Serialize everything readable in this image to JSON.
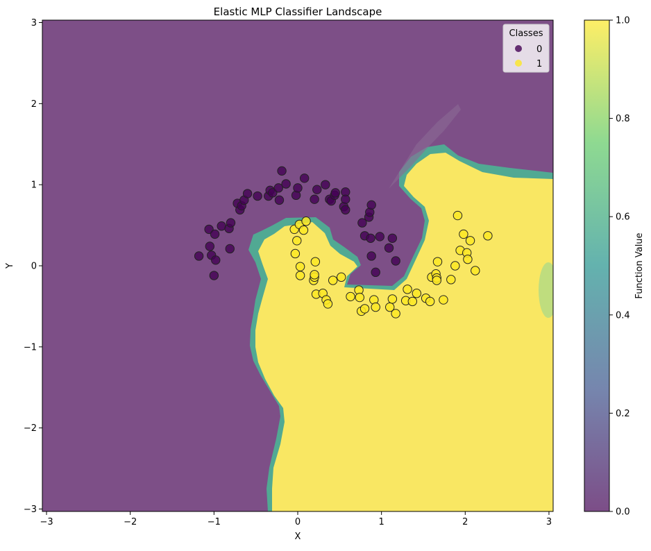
{
  "chart_data": {
    "type": "scatter",
    "title": "Elastic MLP Classifier Landscape",
    "xlabel": "X",
    "ylabel": "Y",
    "xlim": [
      -3.05,
      3.05
    ],
    "ylim": [
      -3.03,
      3.03
    ],
    "xticks": [
      -3,
      -2,
      -1,
      0,
      1,
      2,
      3
    ],
    "xtick_labels": [
      "−3",
      "−2",
      "−1",
      "0",
      "1",
      "2",
      "3"
    ],
    "yticks": [
      -3,
      -2,
      -1,
      0,
      1,
      2,
      3
    ],
    "ytick_labels": [
      "−3",
      "−2",
      "−1",
      "0",
      "1",
      "2",
      "3"
    ],
    "background": "decision function heatmap (viridis, alpha 0.7) — class 1 region yellow, class 0 region purple",
    "colorbar": {
      "label": "Function Value",
      "range": [
        0.0,
        1.0
      ],
      "ticks": [
        0.0,
        0.2,
        0.4,
        0.6,
        0.8,
        1.0
      ],
      "tick_labels": [
        "0.0",
        "0.2",
        "0.4",
        "0.6",
        "0.8",
        "1.0"
      ],
      "colors": [
        "#440154",
        "#3b528b",
        "#21918c",
        "#5ec962",
        "#fde725"
      ]
    },
    "legend": {
      "title": "Classes",
      "placement": "top-right",
      "entries": [
        {
          "label": "0",
          "color": "#440154"
        },
        {
          "label": "1",
          "color": "#fde725"
        }
      ]
    },
    "series": [
      {
        "name": "0",
        "color": "#440154",
        "points": [
          [
            -1.18,
            0.12
          ],
          [
            -1.05,
            0.24
          ],
          [
            -1.03,
            0.13
          ],
          [
            -0.98,
            0.07
          ],
          [
            -1.0,
            -0.12
          ],
          [
            -1.06,
            0.45
          ],
          [
            -0.99,
            0.39
          ],
          [
            -0.91,
            0.49
          ],
          [
            -0.82,
            0.46
          ],
          [
            -0.8,
            0.53
          ],
          [
            -0.81,
            0.21
          ],
          [
            -0.72,
            0.77
          ],
          [
            -0.69,
            0.69
          ],
          [
            -0.67,
            0.74
          ],
          [
            -0.64,
            0.81
          ],
          [
            -0.6,
            0.89
          ],
          [
            -0.48,
            0.86
          ],
          [
            -0.35,
            0.86
          ],
          [
            -0.33,
            0.93
          ],
          [
            -0.3,
            0.9
          ],
          [
            -0.23,
            0.96
          ],
          [
            -0.22,
            0.81
          ],
          [
            -0.19,
            1.17
          ],
          [
            -0.14,
            1.01
          ],
          [
            -0.02,
            0.87
          ],
          [
            0.0,
            0.96
          ],
          [
            0.08,
            1.08
          ],
          [
            0.2,
            0.82
          ],
          [
            0.23,
            0.94
          ],
          [
            0.33,
            1.0
          ],
          [
            0.38,
            0.82
          ],
          [
            0.4,
            0.8
          ],
          [
            0.44,
            0.87
          ],
          [
            0.45,
            0.9
          ],
          [
            0.55,
            0.73
          ],
          [
            0.57,
            0.91
          ],
          [
            0.57,
            0.82
          ],
          [
            0.57,
            0.69
          ],
          [
            0.77,
            0.53
          ],
          [
            0.8,
            0.37
          ],
          [
            0.85,
            0.6
          ],
          [
            0.86,
            0.66
          ],
          [
            0.88,
            0.75
          ],
          [
            0.87,
            0.34
          ],
          [
            0.88,
            0.12
          ],
          [
            0.93,
            -0.08
          ],
          [
            0.98,
            0.36
          ],
          [
            1.09,
            0.22
          ],
          [
            1.13,
            0.34
          ],
          [
            1.17,
            0.06
          ]
        ]
      },
      {
        "name": "1",
        "color": "#fde725",
        "points": [
          [
            -0.04,
            0.45
          ],
          [
            -0.03,
            0.15
          ],
          [
            -0.01,
            0.31
          ],
          [
            0.02,
            0.51
          ],
          [
            0.03,
            -0.01
          ],
          [
            0.03,
            -0.12
          ],
          [
            0.07,
            0.44
          ],
          [
            0.1,
            0.55
          ],
          [
            0.19,
            -0.18
          ],
          [
            0.2,
            -0.14
          ],
          [
            0.2,
            -0.11
          ],
          [
            0.21,
            0.05
          ],
          [
            0.22,
            -0.35
          ],
          [
            0.3,
            -0.34
          ],
          [
            0.34,
            -0.42
          ],
          [
            0.36,
            -0.47
          ],
          [
            0.42,
            -0.18
          ],
          [
            0.52,
            -0.14
          ],
          [
            0.63,
            -0.38
          ],
          [
            0.73,
            -0.3
          ],
          [
            0.74,
            -0.39
          ],
          [
            0.76,
            -0.56
          ],
          [
            0.8,
            -0.53
          ],
          [
            0.91,
            -0.42
          ],
          [
            0.93,
            -0.51
          ],
          [
            1.1,
            -0.51
          ],
          [
            1.13,
            -0.41
          ],
          [
            1.17,
            -0.59
          ],
          [
            1.29,
            -0.43
          ],
          [
            1.31,
            -0.29
          ],
          [
            1.37,
            -0.44
          ],
          [
            1.42,
            -0.34
          ],
          [
            1.53,
            -0.4
          ],
          [
            1.58,
            -0.44
          ],
          [
            1.6,
            -0.14
          ],
          [
            1.65,
            -0.1
          ],
          [
            1.66,
            -0.15
          ],
          [
            1.66,
            -0.18
          ],
          [
            1.67,
            0.05
          ],
          [
            1.74,
            -0.42
          ],
          [
            1.83,
            -0.17
          ],
          [
            1.88,
            0.0
          ],
          [
            1.91,
            0.62
          ],
          [
            1.94,
            0.19
          ],
          [
            1.98,
            0.39
          ],
          [
            2.02,
            0.16
          ],
          [
            2.03,
            0.08
          ],
          [
            2.06,
            0.31
          ],
          [
            2.12,
            -0.06
          ],
          [
            2.27,
            0.37
          ]
        ]
      }
    ]
  }
}
